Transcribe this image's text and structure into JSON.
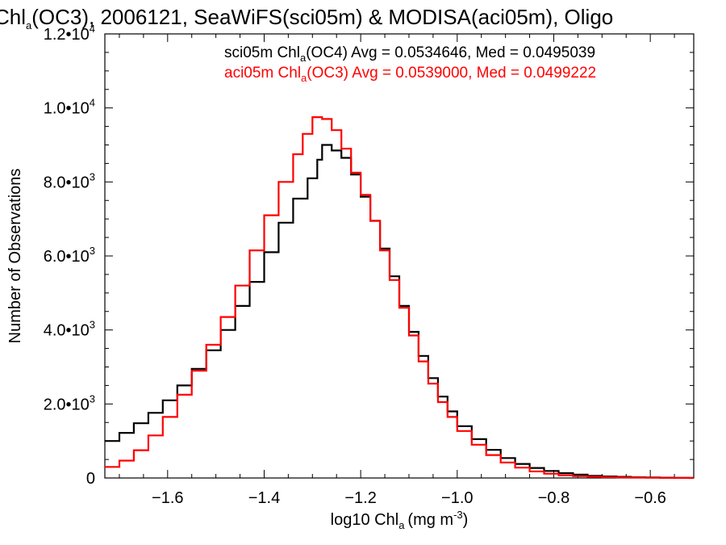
{
  "chart_data": {
    "type": "line",
    "title": {
      "prefix": "Chl",
      "prefix_subscript": "a",
      "rest": "(OC3), 2006121, SeaWiFS(sci05m) & MODISA(aci05m), Oligo"
    },
    "xlabel": {
      "main": "log10 Chl",
      "subscript": "a",
      "units": "(mg m",
      "units_exponent": "-3",
      "units_close": ")"
    },
    "ylabel": "Number of Observations",
    "xlim": [
      -1.73,
      -0.51
    ],
    "ylim": [
      0,
      12000
    ],
    "x_ticks": [
      -1.6,
      -1.4,
      -1.2,
      -1.0,
      -0.8,
      -0.6
    ],
    "x_tick_labels": [
      "−1.6",
      "−1.4",
      "−1.2",
      "−1.0",
      "−0.8",
      "−0.6"
    ],
    "y_ticks": [
      {
        "value": 0,
        "mantissa": "0",
        "exponent": ""
      },
      {
        "value": 2000,
        "mantissa": "2.0•10",
        "exponent": "3"
      },
      {
        "value": 4000,
        "mantissa": "4.0•10",
        "exponent": "3"
      },
      {
        "value": 6000,
        "mantissa": "6.0•10",
        "exponent": "3"
      },
      {
        "value": 8000,
        "mantissa": "8.0•10",
        "exponent": "3"
      },
      {
        "value": 10000,
        "mantissa": "1.0•10",
        "exponent": "4"
      },
      {
        "value": 12000,
        "mantissa": "1.2•10",
        "exponent": "4"
      }
    ],
    "grid": false,
    "legend_position": "top-right",
    "series": [
      {
        "name": "sci05m",
        "color": "#000000",
        "legend": {
          "prefix": "sci05m Chl",
          "subscript": "a",
          "rest": "(OC4) Avg = 0.0534646, Med = 0.0495039"
        },
        "points": [
          [
            -1.73,
            1000
          ],
          [
            -1.7,
            1220
          ],
          [
            -1.67,
            1480
          ],
          [
            -1.64,
            1760
          ],
          [
            -1.61,
            2100
          ],
          [
            -1.58,
            2500
          ],
          [
            -1.55,
            2950
          ],
          [
            -1.52,
            3450
          ],
          [
            -1.49,
            4000
          ],
          [
            -1.46,
            4650
          ],
          [
            -1.43,
            5300
          ],
          [
            -1.4,
            6100
          ],
          [
            -1.37,
            6900
          ],
          [
            -1.34,
            7550
          ],
          [
            -1.31,
            8100
          ],
          [
            -1.29,
            8600
          ],
          [
            -1.28,
            9000
          ],
          [
            -1.26,
            8850
          ],
          [
            -1.24,
            8650
          ],
          [
            -1.22,
            8200
          ],
          [
            -1.2,
            7600
          ],
          [
            -1.18,
            6950
          ],
          [
            -1.16,
            6200
          ],
          [
            -1.14,
            5450
          ],
          [
            -1.12,
            4650
          ],
          [
            -1.1,
            3950
          ],
          [
            -1.08,
            3300
          ],
          [
            -1.06,
            2700
          ],
          [
            -1.04,
            2200
          ],
          [
            -1.02,
            1800
          ],
          [
            -1.0,
            1400
          ],
          [
            -0.97,
            1050
          ],
          [
            -0.94,
            760
          ],
          [
            -0.91,
            540
          ],
          [
            -0.88,
            380
          ],
          [
            -0.85,
            270
          ],
          [
            -0.82,
            190
          ],
          [
            -0.79,
            130
          ],
          [
            -0.76,
            90
          ],
          [
            -0.73,
            60
          ],
          [
            -0.7,
            42
          ],
          [
            -0.67,
            30
          ],
          [
            -0.64,
            20
          ],
          [
            -0.61,
            13
          ],
          [
            -0.58,
            8
          ],
          [
            -0.55,
            5
          ],
          [
            -0.52,
            3
          ]
        ]
      },
      {
        "name": "aci05m",
        "color": "#ff0000",
        "legend": {
          "prefix": "aci05m Chl",
          "subscript": "a",
          "rest": "(OC3) Avg = 0.0539000, Med = 0.0499222"
        },
        "points": [
          [
            -1.73,
            300
          ],
          [
            -1.7,
            470
          ],
          [
            -1.67,
            750
          ],
          [
            -1.64,
            1150
          ],
          [
            -1.61,
            1650
          ],
          [
            -1.58,
            2250
          ],
          [
            -1.55,
            2900
          ],
          [
            -1.52,
            3600
          ],
          [
            -1.49,
            4350
          ],
          [
            -1.46,
            5200
          ],
          [
            -1.43,
            6150
          ],
          [
            -1.4,
            7100
          ],
          [
            -1.37,
            8000
          ],
          [
            -1.34,
            8750
          ],
          [
            -1.32,
            9300
          ],
          [
            -1.3,
            9750
          ],
          [
            -1.28,
            9700
          ],
          [
            -1.26,
            9400
          ],
          [
            -1.24,
            8900
          ],
          [
            -1.22,
            8250
          ],
          [
            -1.2,
            7650
          ],
          [
            -1.18,
            6950
          ],
          [
            -1.16,
            6150
          ],
          [
            -1.14,
            5350
          ],
          [
            -1.12,
            4600
          ],
          [
            -1.1,
            3850
          ],
          [
            -1.08,
            3150
          ],
          [
            -1.06,
            2550
          ],
          [
            -1.04,
            2050
          ],
          [
            -1.02,
            1650
          ],
          [
            -1.0,
            1270
          ],
          [
            -0.97,
            900
          ],
          [
            -0.94,
            620
          ],
          [
            -0.91,
            420
          ],
          [
            -0.88,
            280
          ],
          [
            -0.85,
            180
          ],
          [
            -0.82,
            115
          ],
          [
            -0.79,
            75
          ],
          [
            -0.76,
            50
          ],
          [
            -0.73,
            32
          ],
          [
            -0.7,
            22
          ],
          [
            -0.67,
            15
          ],
          [
            -0.64,
            10
          ],
          [
            -0.61,
            6
          ],
          [
            -0.58,
            4
          ],
          [
            -0.55,
            2
          ],
          [
            -0.52,
            1
          ]
        ]
      }
    ]
  }
}
